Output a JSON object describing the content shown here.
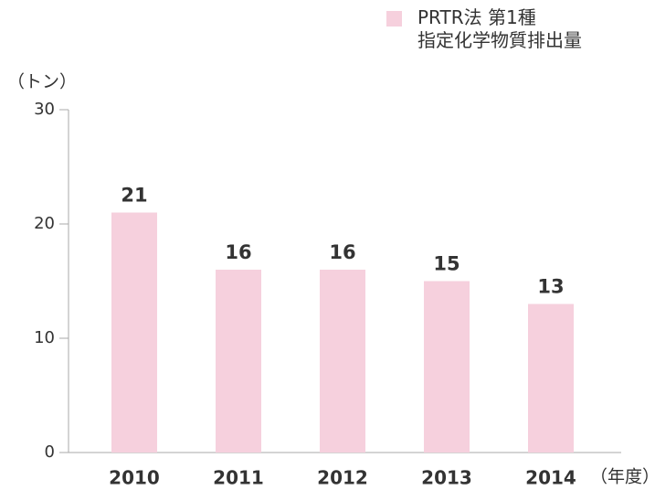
{
  "chart_data": {
    "type": "bar",
    "y_axis_label": "（トン）",
    "x_axis_label": "（年度）",
    "categories": [
      "2010",
      "2011",
      "2012",
      "2013",
      "2014"
    ],
    "series": [
      {
        "name": "PRTR法 第1種\n指定化学物質排出量",
        "color": "#f6d0dd",
        "values": [
          21,
          16,
          16,
          15,
          13
        ]
      }
    ],
    "ylim": [
      0,
      30
    ],
    "yticks": [
      0,
      10,
      20,
      30
    ],
    "grid": false,
    "legend": "top-right"
  }
}
